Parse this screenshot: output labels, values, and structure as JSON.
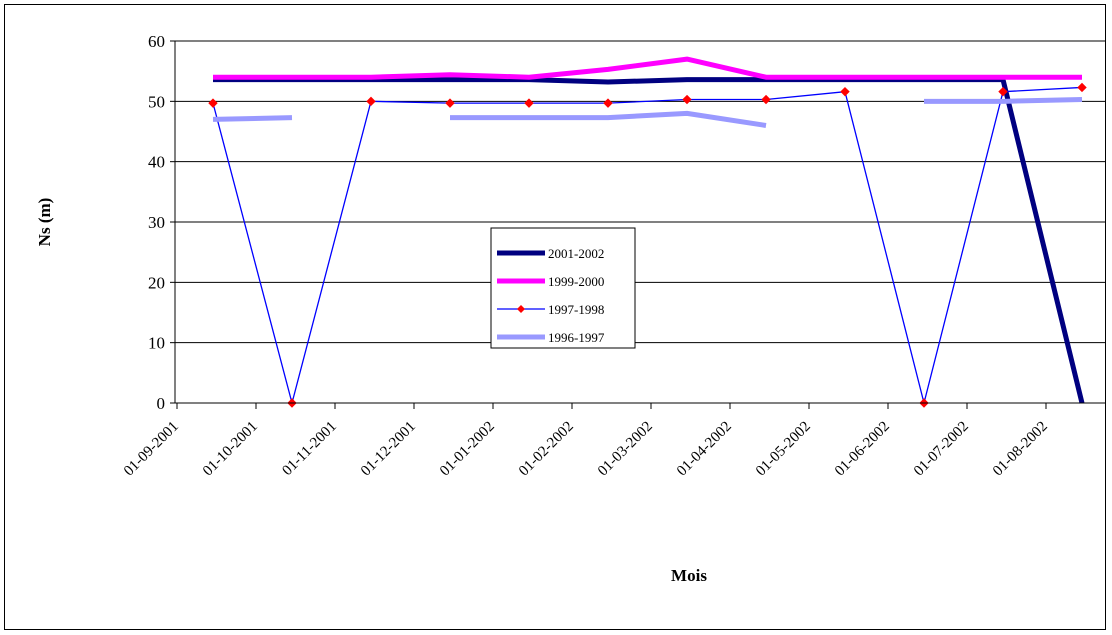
{
  "chart_data": {
    "type": "line",
    "title": "",
    "xlabel": "Mois",
    "ylabel": "Ns (m)",
    "ylim": [
      0,
      60
    ],
    "yticks": [
      0,
      10,
      20,
      30,
      40,
      50,
      60
    ],
    "categories": [
      "01-09-2001",
      "01-10-2001",
      "01-11-2001",
      "01-12-2001",
      "01-01-2002",
      "01-02-2002",
      "01-03-2002",
      "01-04-2002",
      "01-05-2002",
      "01-06-2002",
      "01-07-2002",
      "01-08-2002"
    ],
    "grid": "horizontal",
    "legend_position": "center",
    "series": [
      {
        "name": "2001-2002",
        "color": "#000080",
        "style": "thick",
        "values": [
          53.6,
          53.6,
          53.6,
          53.6,
          53.6,
          53.2,
          53.6,
          53.6,
          53.6,
          53.6,
          53.6,
          0
        ]
      },
      {
        "name": "1999-2000",
        "color": "#ff00ff",
        "style": "thick",
        "values": [
          54,
          54,
          54,
          54.4,
          54,
          55.3,
          57,
          54,
          54,
          54,
          54,
          54
        ]
      },
      {
        "name": "1997-1998",
        "color": "#0000ff",
        "style": "thin-marker",
        "marker_color": "#ff0000",
        "values": [
          49.7,
          0,
          50,
          49.7,
          49.7,
          49.7,
          50.3,
          50.3,
          51.6,
          0,
          51.6,
          52.3
        ]
      },
      {
        "name": "1996-1997",
        "color": "#9999ff",
        "style": "thick",
        "values": [
          47,
          47.3,
          null,
          47.3,
          47.3,
          47.3,
          48,
          46,
          null,
          50,
          50,
          50.3
        ]
      }
    ]
  }
}
